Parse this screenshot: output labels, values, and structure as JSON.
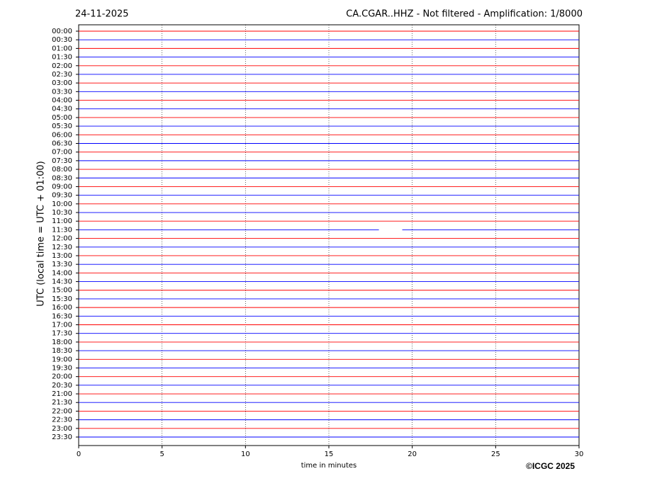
{
  "chart_data": {
    "type": "helicorder",
    "date": "24-11-2025",
    "title": "CA.CGAR..HHZ - Not filtered - Amplification: 1/8000",
    "y_label": "UTC (local time = UTC + 01:00)",
    "x_label": "time in minutes",
    "credit": "©ICGC 2025",
    "categories": [
      "00:00",
      "00:30",
      "01:00",
      "01:30",
      "02:00",
      "02:30",
      "03:00",
      "03:30",
      "04:00",
      "04:30",
      "05:00",
      "05:30",
      "06:00",
      "06:30",
      "07:00",
      "07:30",
      "08:00",
      "08:30",
      "09:00",
      "09:30",
      "10:00",
      "10:30",
      "11:00",
      "11:30",
      "12:00",
      "12:30",
      "13:00",
      "13:30",
      "14:00",
      "14:30",
      "15:00",
      "15:30",
      "16:00",
      "16:30",
      "17:00",
      "17:30",
      "18:00",
      "18:30",
      "19:00",
      "19:30",
      "20:00",
      "20:30",
      "21:00",
      "21:30",
      "22:00",
      "22:30",
      "23:00",
      "23:30"
    ],
    "colors": [
      "#ff0000",
      "#0000ff"
    ],
    "xlim": [
      0,
      30
    ],
    "xticks": [
      0,
      5,
      10,
      15,
      20,
      25,
      30
    ],
    "grid": true,
    "gaps": [
      {
        "category": "11:30",
        "from": 18,
        "to": 19.4
      }
    ]
  }
}
